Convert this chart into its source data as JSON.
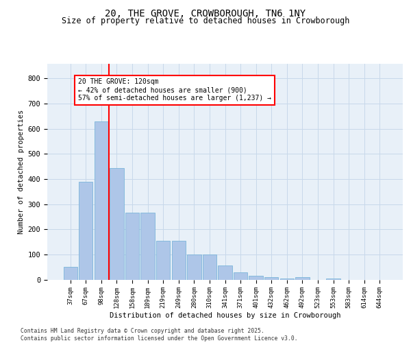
{
  "title_line1": "20, THE GROVE, CROWBOROUGH, TN6 1NY",
  "title_line2": "Size of property relative to detached houses in Crowborough",
  "xlabel": "Distribution of detached houses by size in Crowborough",
  "ylabel": "Number of detached properties",
  "categories": [
    "37sqm",
    "67sqm",
    "98sqm",
    "128sqm",
    "158sqm",
    "189sqm",
    "219sqm",
    "249sqm",
    "280sqm",
    "310sqm",
    "341sqm",
    "371sqm",
    "401sqm",
    "432sqm",
    "462sqm",
    "492sqm",
    "523sqm",
    "553sqm",
    "583sqm",
    "614sqm",
    "644sqm"
  ],
  "values": [
    50,
    390,
    630,
    445,
    265,
    265,
    155,
    155,
    100,
    100,
    55,
    30,
    15,
    10,
    5,
    10,
    0,
    5,
    0,
    0,
    0
  ],
  "bar_color": "#aec6e8",
  "bar_edge_color": "#6baed6",
  "grid_color": "#c8d8ea",
  "background_color": "#e8f0f8",
  "vline_color": "red",
  "annotation_text": "20 THE GROVE: 120sqm\n← 42% of detached houses are smaller (900)\n57% of semi-detached houses are larger (1,237) →",
  "footer_text": "Contains HM Land Registry data © Crown copyright and database right 2025.\nContains public sector information licensed under the Open Government Licence v3.0.",
  "ylim": [
    0,
    860
  ],
  "yticks": [
    0,
    100,
    200,
    300,
    400,
    500,
    600,
    700,
    800
  ]
}
